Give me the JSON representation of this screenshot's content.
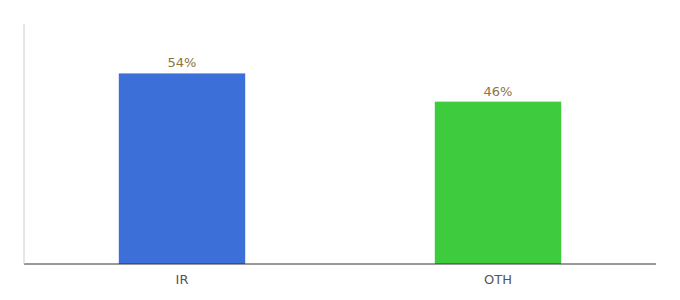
{
  "chart_data": {
    "type": "bar",
    "categories": [
      "IR",
      "OTH"
    ],
    "values": [
      54,
      46
    ],
    "value_labels": [
      "54%",
      "46%"
    ],
    "colors": [
      "#3d6fd9",
      "#3ecc3e"
    ],
    "ylim": [
      0,
      68
    ],
    "data_labels": true,
    "tick_labels": "x",
    "grid": false
  }
}
